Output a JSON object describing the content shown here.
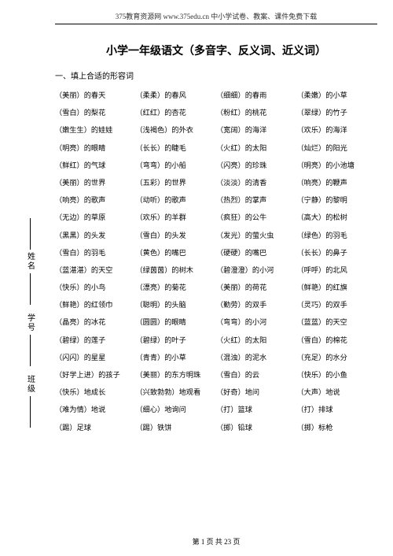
{
  "header": {
    "text": "375教育资源网 www.375edu.cn 中小学试卷、教案、课件免费下载"
  },
  "side": {
    "label1": "姓名",
    "label2": "学号",
    "label3": "班级"
  },
  "title": "小学一年级语文（多音字、反义词、近义词）",
  "section_head": "一、填上合适的形容词",
  "rows": [
    [
      "（美丽）的春天",
      "（柔柔）的春风",
      "（细细）的春雨",
      "（柔嫩）的小草"
    ],
    [
      "（雪白）的梨花",
      "（红红）的杏花",
      "（粉红）的桃花",
      "（翠绿）的竹子"
    ],
    [
      "（嫩生生）的娃娃",
      "（浅褐色）的外衣",
      "（宽阔）的海洋",
      "（欢乐）的海洋"
    ],
    [
      "（明亮）的眼睛",
      "（长长）的睫毛",
      "（火红）的太阳",
      "（灿烂）的阳光"
    ],
    [
      "（鲜红）的气球",
      "（弯弯）的小船",
      "（闪亮）的珍珠",
      "（明亮）的小池塘"
    ],
    [
      "（美丽）的世界",
      "（五彩）的世界",
      "（淡淡）的清香",
      "（响亮）的鞭声"
    ],
    [
      "（响亮）的歌声",
      "（动听）的歌声",
      "（热烈）的掌声",
      "（宁静）的黎明"
    ],
    [
      "（无边）的草原",
      "（欢乐）的羊群",
      "（疯狂）的公牛",
      "（高大）的松树"
    ],
    [
      "（黑黑）的头发",
      "（雪白）的头发",
      "（发光）的萤火虫",
      "（绿色）的羽毛"
    ],
    [
      "（雪白）的羽毛",
      "（黄色）的嘴巴",
      "（硬硬）的嘴巴",
      "（长长）的鼻子"
    ],
    [
      "（蓝湛湛）的天空",
      "（绿茵茵）的树木",
      "（碧澄澄）的小河",
      "（呼呼）的北风"
    ],
    [
      "（快乐）的小鸟",
      "（漂亮）的菊花",
      "（美丽）的荷花",
      "（鲜艳）的红旗"
    ],
    [
      "（鲜艳）的红领巾",
      "（聪明）的头脑",
      "（勤劳）的双手",
      "（灵巧）的双手"
    ],
    [
      "（晶亮）的冰花",
      "（圆圆）的眼睛",
      "（弯弯）的小河",
      "（蓝蓝）的天空"
    ],
    [
      "（碧绿）的莲子",
      "（碧绿）的叶子",
      "（火红）的太阳",
      "（雪白）的棉花"
    ],
    [
      "（闪闪）的星星",
      "（青青）的小草",
      "（混浊）的泥水",
      "（充足）的水分"
    ],
    [
      "（好学上进）的孩子",
      "（美丽）的东方明珠",
      "（雪白）的云",
      "（快乐）的小鱼"
    ],
    [
      "（快乐）地成长",
      "（兴致勃勃）地观看",
      "（好奇）地问",
      "（大声）地说"
    ],
    [
      "（难为情）地说",
      "（细心）地询问",
      "（打）篮球",
      "（打）排球"
    ],
    [
      "（踢）足球",
      "（踢）铁饼",
      "（掷）铅球",
      "（掷）标枪"
    ]
  ],
  "footer": {
    "text": "第 1 页 共 23 页"
  },
  "colors": {
    "text": "#000000",
    "background": "#ffffff"
  }
}
